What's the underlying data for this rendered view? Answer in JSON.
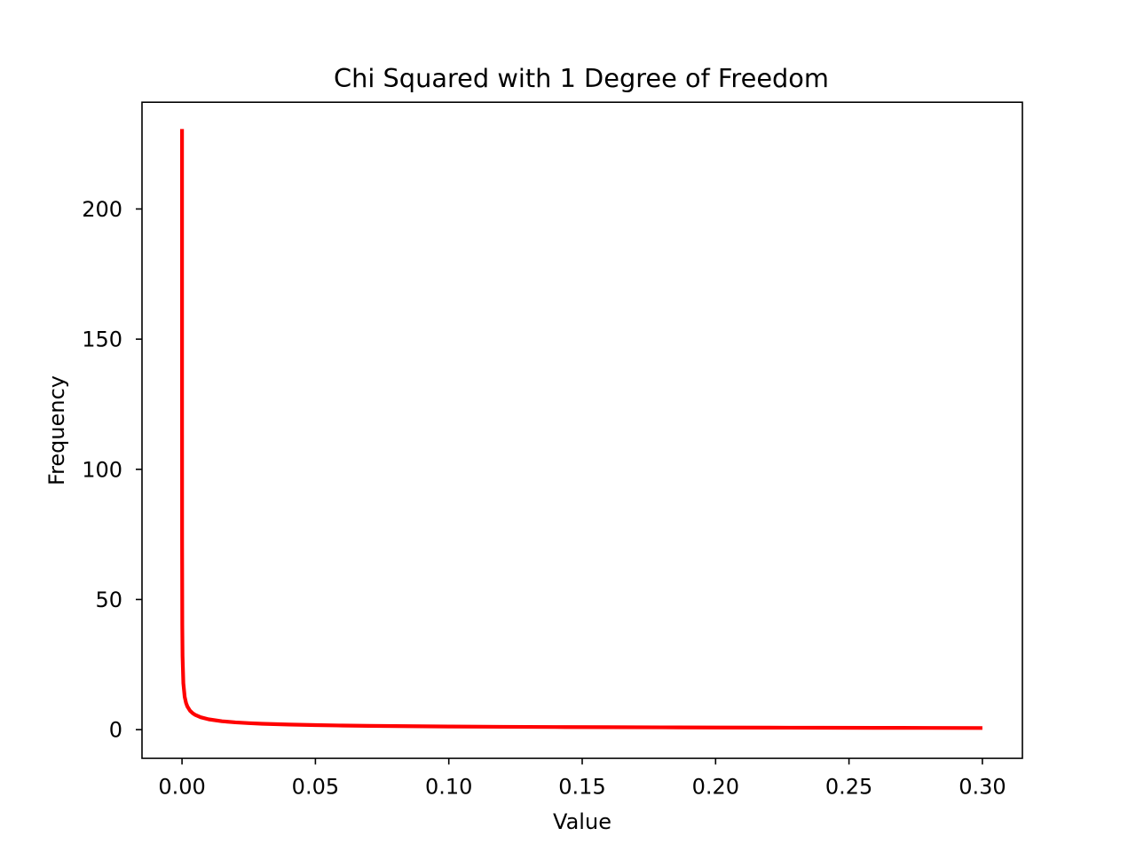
{
  "chart_data": {
    "type": "line",
    "title": "Chi Squared with 1 Degree of Freedom",
    "xlabel": "Value",
    "ylabel": "Frequency",
    "xlim": [
      -0.015,
      0.315
    ],
    "ylim": [
      -11,
      241
    ],
    "xticks": [
      0.0,
      0.05,
      0.1,
      0.15,
      0.2,
      0.25,
      0.3
    ],
    "xtick_labels": [
      "0.00",
      "0.05",
      "0.10",
      "0.15",
      "0.20",
      "0.25",
      "0.30"
    ],
    "yticks": [
      0,
      50,
      100,
      150,
      200
    ],
    "ytick_labels": [
      "0",
      "50",
      "100",
      "150",
      "200"
    ],
    "grid": false,
    "line_color": "#ff0000",
    "series": [
      {
        "x": [
          2.99e-06,
          1e-05,
          3e-05,
          0.0001,
          0.0002,
          0.0005,
          0.001,
          0.0015,
          0.002,
          0.003,
          0.004,
          0.005,
          0.007,
          0.01,
          0.015,
          0.02,
          0.025,
          0.03,
          0.04,
          0.05,
          0.06,
          0.07,
          0.08,
          0.09,
          0.1,
          0.12,
          0.14,
          0.16,
          0.18,
          0.2,
          0.22,
          0.24,
          0.26,
          0.28,
          0.3
        ],
        "values": [
          230.7,
          126.2,
          72.8,
          39.9,
          28.2,
          17.8,
          12.6,
          10.3,
          8.9,
          7.27,
          6.3,
          5.63,
          4.76,
          3.97,
          3.23,
          2.79,
          2.49,
          2.27,
          1.96,
          1.74,
          1.58,
          1.46,
          1.36,
          1.27,
          1.2,
          1.09,
          1.0,
          0.93,
          0.87,
          0.81,
          0.77,
          0.73,
          0.69,
          0.66,
          0.63
        ]
      }
    ]
  }
}
